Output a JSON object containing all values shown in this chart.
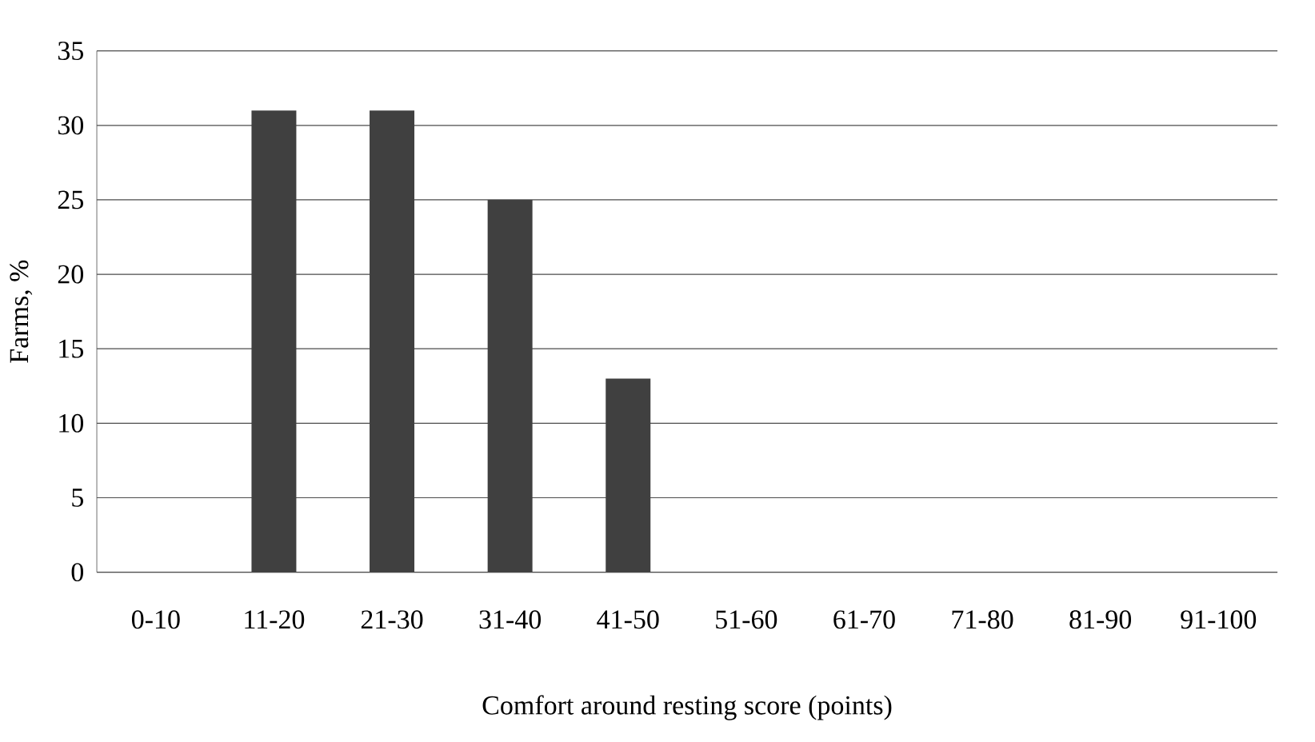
{
  "chart_data": {
    "type": "bar",
    "xlabel": "Comfort around resting score (points)",
    "ylabel": "Farms, %",
    "categories": [
      "0-10",
      "11-20",
      "21-30",
      "31-40",
      "41-50",
      "51-60",
      "61-70",
      "71-80",
      "81-90",
      "91-100"
    ],
    "values": [
      0,
      31,
      31,
      25,
      13,
      0,
      0,
      0,
      0,
      0
    ],
    "color": "#404040",
    "ylim": [
      0,
      35
    ],
    "yticks": [
      0,
      5,
      10,
      15,
      20,
      25,
      30,
      35
    ],
    "grid": "y"
  }
}
